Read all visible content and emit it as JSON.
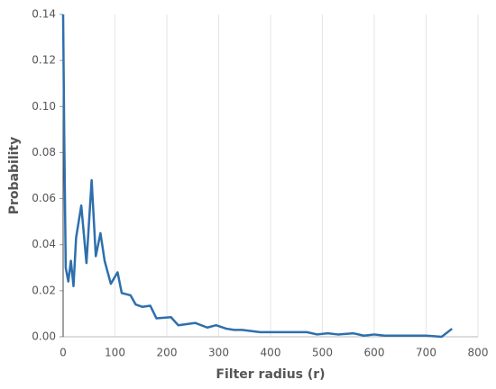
{
  "chart_data": {
    "type": "line",
    "x_label": "Filter radius (r)",
    "y_label": "Probability",
    "x": [
      0,
      2,
      5,
      10,
      15,
      20,
      25,
      35,
      45,
      55,
      63,
      72,
      80,
      92,
      105,
      113,
      130,
      140,
      153,
      168,
      180,
      208,
      222,
      255,
      278,
      295,
      315,
      330,
      345,
      380,
      470,
      490,
      510,
      530,
      560,
      580,
      600,
      620,
      700,
      730,
      750
    ],
    "series": [
      {
        "color": "#2e6fad",
        "values": [
          0.14,
          0.09,
          0.03,
          0.024,
          0.033,
          0.022,
          0.043,
          0.057,
          0.032,
          0.068,
          0.035,
          0.045,
          0.033,
          0.023,
          0.028,
          0.019,
          0.018,
          0.014,
          0.013,
          0.0135,
          0.008,
          0.0085,
          0.005,
          0.006,
          0.004,
          0.005,
          0.0035,
          0.003,
          0.003,
          0.002,
          0.002,
          0.001,
          0.0015,
          0.001,
          0.0015,
          0.0005,
          0.001,
          0.0005,
          0.0005,
          0,
          0.0035
        ]
      }
    ],
    "xlim": [
      0,
      800
    ],
    "xticks": [
      0,
      100,
      200,
      300,
      400,
      500,
      600,
      700,
      800
    ],
    "ylim": [
      0,
      0.14
    ],
    "yticks": [
      {
        "value": 0,
        "label": "0.00"
      },
      0.02,
      0.04,
      0.06,
      0.08,
      {
        "value": 0.1,
        "label": "0.10"
      },
      0.12,
      0.14
    ],
    "grid": true
  }
}
